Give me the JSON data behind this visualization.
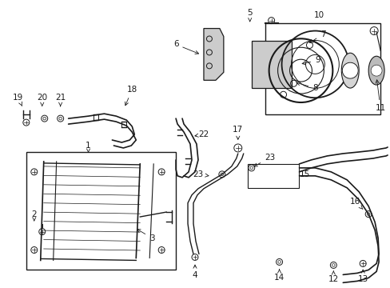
{
  "bg_color": "#ffffff",
  "line_color": "#1a1a1a",
  "fig_width": 4.89,
  "fig_height": 3.6,
  "dpi": 100,
  "arrow_kw": {
    "arrowstyle": "->",
    "lw": 0.6
  },
  "label_fontsize": 7.5
}
